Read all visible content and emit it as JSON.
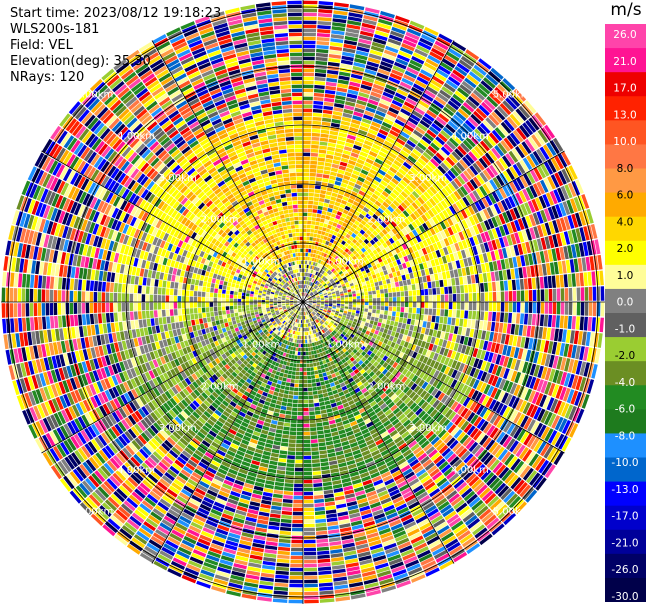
{
  "info": {
    "start_time": "Start time: 2023/08/12 19:18:23",
    "site": "WLS200s-181",
    "field": "Field: VEL",
    "elevation": "Elevation(deg): 35.30",
    "nrays": "NRays: 120"
  },
  "range_rings": [
    {
      "label": "1.00km"
    },
    {
      "label": "2.00km"
    },
    {
      "label": "3.00km"
    },
    {
      "label": "4.00km"
    },
    {
      "label": "5.00km"
    }
  ],
  "colorbar": {
    "unit": "m/s",
    "ticks": [
      "26.0",
      "21.0",
      "17.0",
      "13.0",
      "10.0",
      "8.0",
      "6.0",
      "4.0",
      "2.0",
      "1.0",
      "0.0",
      "-1.0",
      "-2.0",
      "-4.0",
      "-6.0",
      "-8.0",
      "-10.0",
      "-13.0",
      "-17.0",
      "-21.0",
      "-26.0",
      "-30.0"
    ],
    "colors": [
      "#ff44aa",
      "#ff1493",
      "#ee0000",
      "#ff2200",
      "#ff5522",
      "#ff7744",
      "#ff9944",
      "#ffaa00",
      "#ffd700",
      "#ffff00",
      "#fffd99",
      "#808080",
      "#606060",
      "#9acd32",
      "#6b8e23",
      "#228b22",
      "#1e7b1e",
      "#1e90ff",
      "#0066cc",
      "#0000ff",
      "#0000cc",
      "#000099",
      "#000066",
      "#00004a"
    ]
  }
}
